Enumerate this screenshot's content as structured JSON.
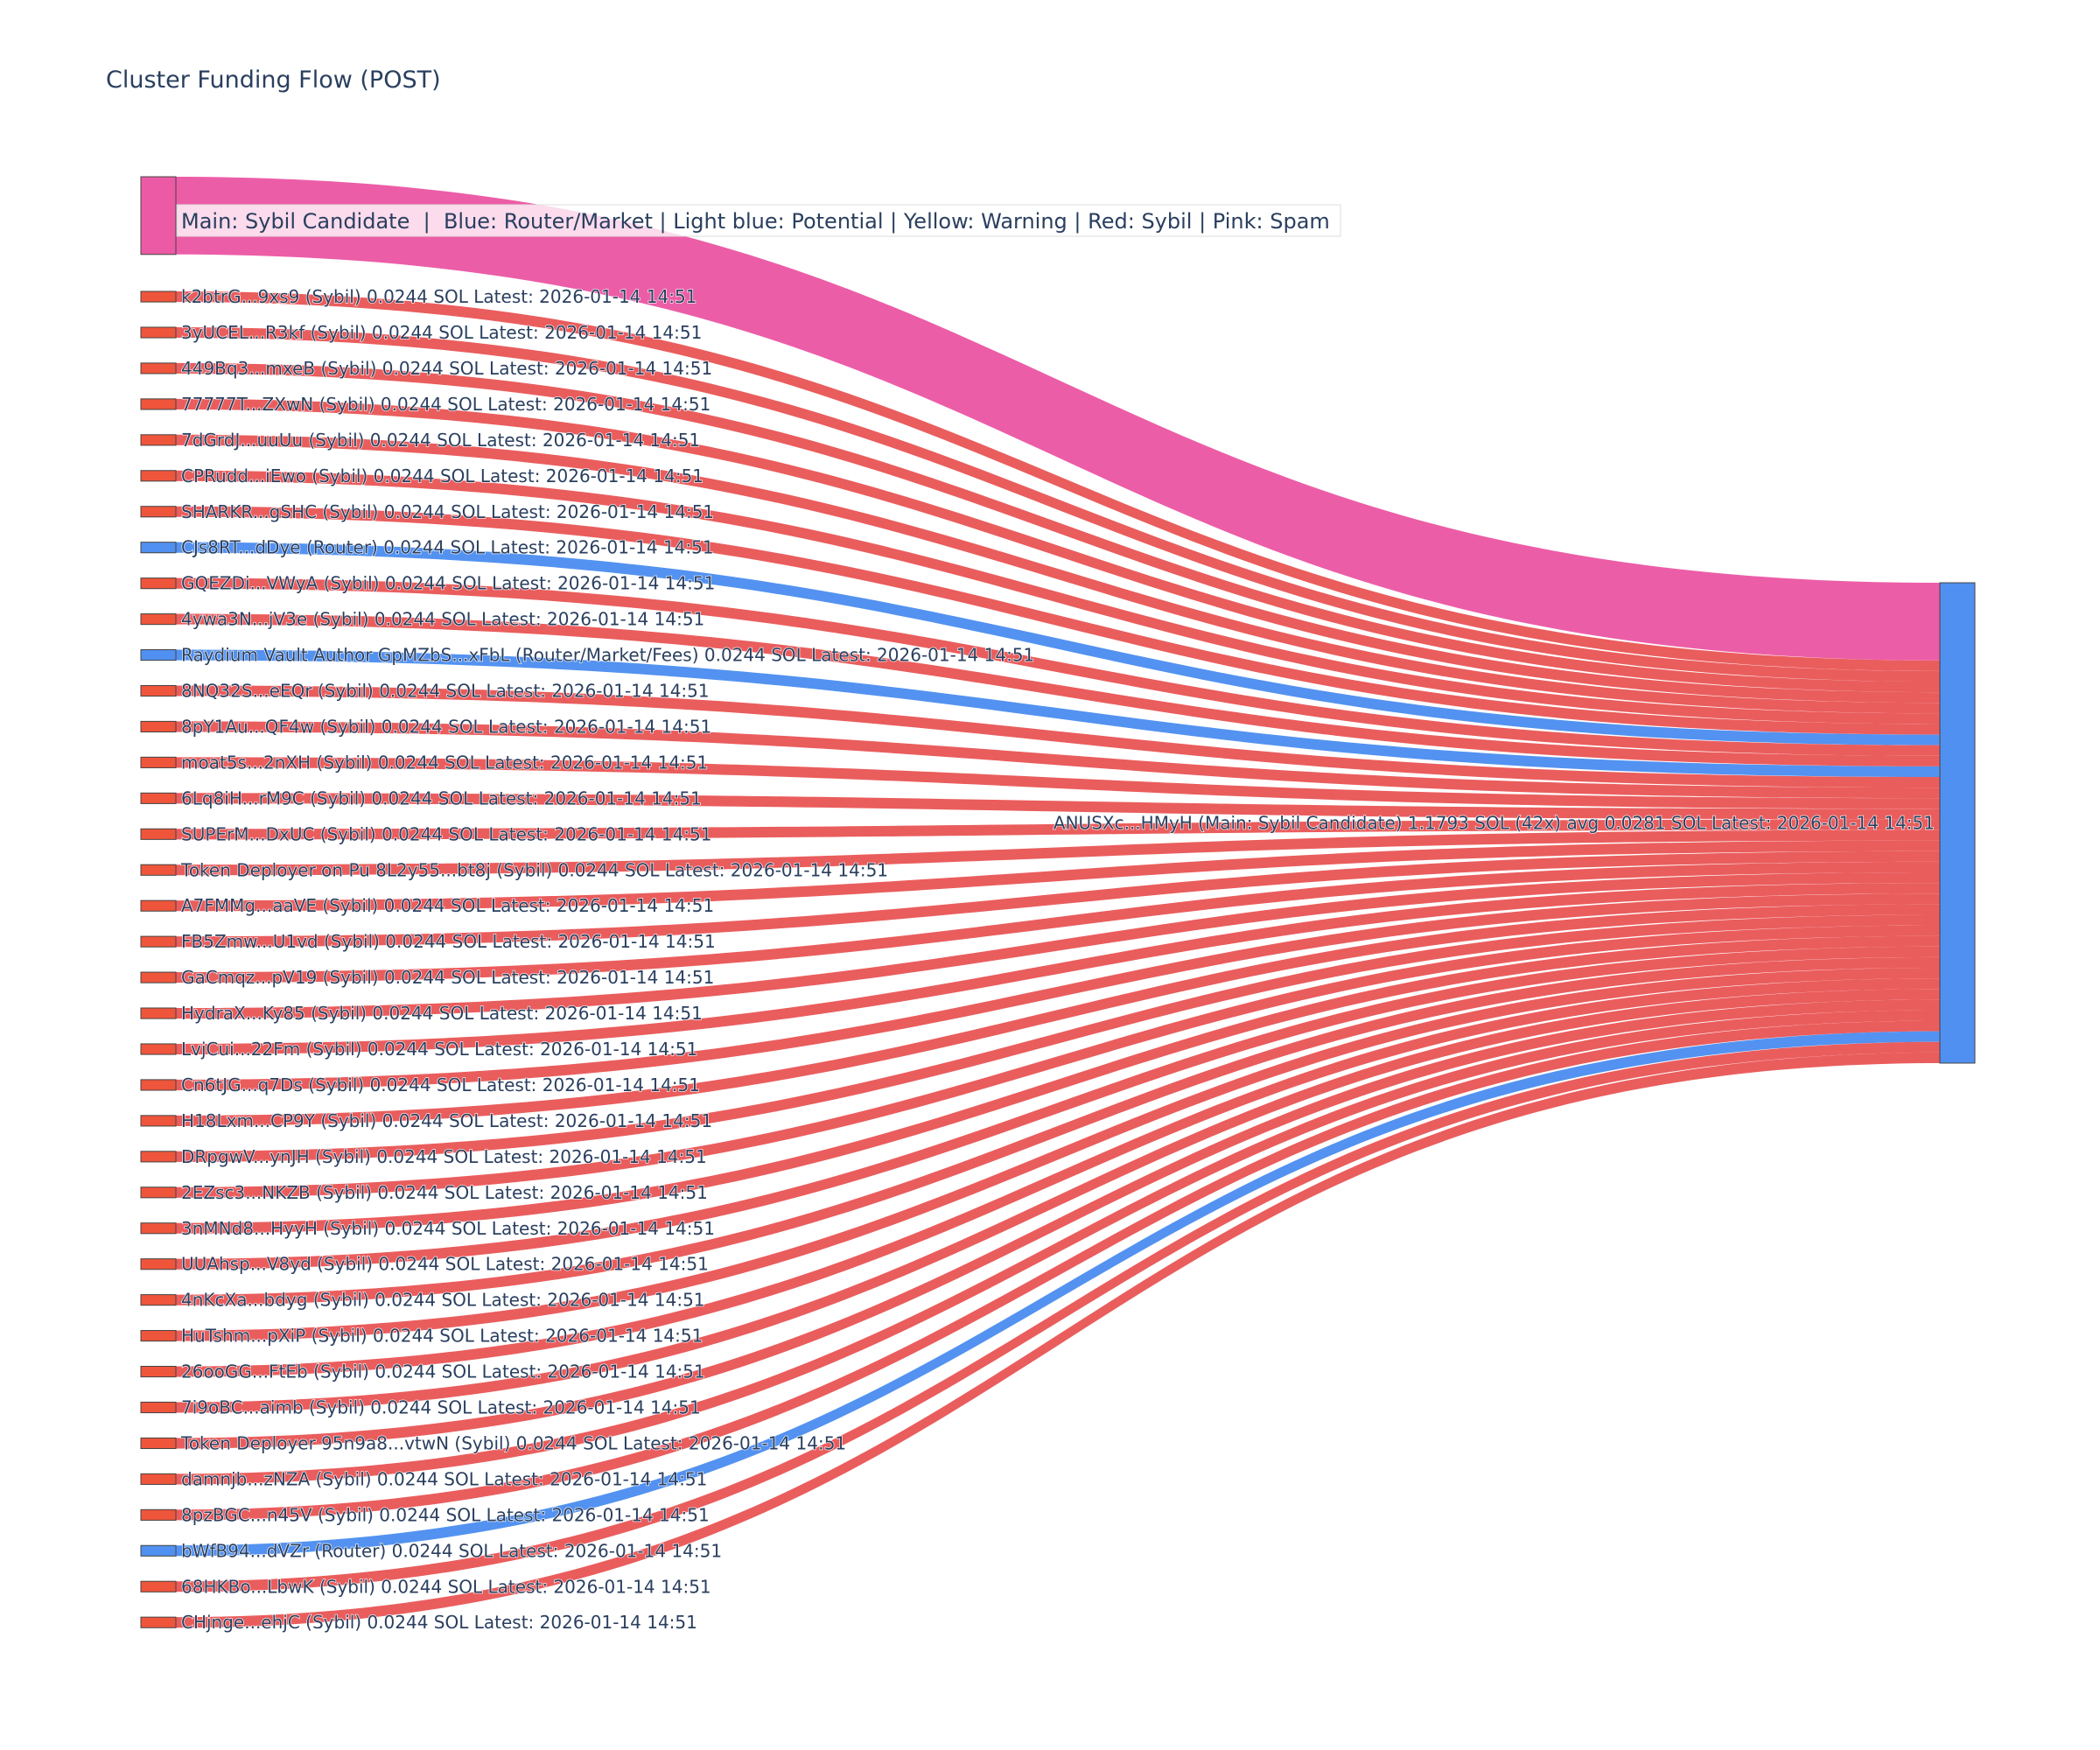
{
  "chart_data": {
    "type": "sankey",
    "title": "Cluster Funding Flow (POST)",
    "legend_text": "Main: Sybil Candidate  |  Blue: Router/Market | Light blue: Potential | Yellow: Warning | Red: Sybil | Pink: Spam",
    "colors": {
      "sybil": "#ef553b",
      "sybil_link": "#ea5a5a",
      "router": "#5090f0",
      "spam": "#ec5aa5",
      "main": "#5090f0"
    },
    "target": {
      "label": "ANUSXc...HMyH (Main: Sybil Candidate) 1.1793 SOL (42x) avg 0.0281 SOL Latest: 2026-01-14 14:51",
      "kind": "main"
    },
    "sources": [
      {
        "label": "",
        "kind": "spam",
        "value": 0.1789
      },
      {
        "label": "k2btrG...9xs9 (Sybil) 0.0244 SOL Latest: 2026-01-14 14:51",
        "kind": "sybil",
        "value": 0.0244
      },
      {
        "label": "3yUCEL...R3kf (Sybil) 0.0244 SOL Latest: 2026-01-14 14:51",
        "kind": "sybil",
        "value": 0.0244
      },
      {
        "label": "449Bq3...mxeB (Sybil) 0.0244 SOL Latest: 2026-01-14 14:51",
        "kind": "sybil",
        "value": 0.0244
      },
      {
        "label": "77777T...ZXwN (Sybil) 0.0244 SOL Latest: 2026-01-14 14:51",
        "kind": "sybil",
        "value": 0.0244
      },
      {
        "label": "7dGrdJ...uuUu (Sybil) 0.0244 SOL Latest: 2026-01-14 14:51",
        "kind": "sybil",
        "value": 0.0244
      },
      {
        "label": "CPRudd...iEwo (Sybil) 0.0244 SOL Latest: 2026-01-14 14:51",
        "kind": "sybil",
        "value": 0.0244
      },
      {
        "label": "SHARKR...gSHC (Sybil) 0.0244 SOL Latest: 2026-01-14 14:51",
        "kind": "sybil",
        "value": 0.0244
      },
      {
        "label": "CJs8RT...dDye (Router) 0.0244 SOL Latest: 2026-01-14 14:51",
        "kind": "router",
        "value": 0.0244
      },
      {
        "label": "GQEZDi...VWyA (Sybil) 0.0244 SOL Latest: 2026-01-14 14:51",
        "kind": "sybil",
        "value": 0.0244
      },
      {
        "label": "4ywa3N...jV3e (Sybil) 0.0244 SOL Latest: 2026-01-14 14:51",
        "kind": "sybil",
        "value": 0.0244
      },
      {
        "label": "Raydium Vault Author GpMZbS...xFbL (Router/Market/Fees) 0.0244 SOL Latest: 2026-01-14 14:51",
        "kind": "router",
        "value": 0.0244
      },
      {
        "label": "8NQ32S...eEQr (Sybil) 0.0244 SOL Latest: 2026-01-14 14:51",
        "kind": "sybil",
        "value": 0.0244
      },
      {
        "label": "8pY1Au...QF4w (Sybil) 0.0244 SOL Latest: 2026-01-14 14:51",
        "kind": "sybil",
        "value": 0.0244
      },
      {
        "label": "moat5s...2nXH (Sybil) 0.0244 SOL Latest: 2026-01-14 14:51",
        "kind": "sybil",
        "value": 0.0244
      },
      {
        "label": "6Lq8iH...rM9C (Sybil) 0.0244 SOL Latest: 2026-01-14 14:51",
        "kind": "sybil",
        "value": 0.0244
      },
      {
        "label": "SUPErM...DxUC (Sybil) 0.0244 SOL Latest: 2026-01-14 14:51",
        "kind": "sybil",
        "value": 0.0244
      },
      {
        "label": "Token Deployer on Pu 8L2y55...bt8j (Sybil) 0.0244 SOL Latest: 2026-01-14 14:51",
        "kind": "sybil",
        "value": 0.0244
      },
      {
        "label": "A7FMMg...aaVE (Sybil) 0.0244 SOL Latest: 2026-01-14 14:51",
        "kind": "sybil",
        "value": 0.0244
      },
      {
        "label": "FB5Zmw...U1vd (Sybil) 0.0244 SOL Latest: 2026-01-14 14:51",
        "kind": "sybil",
        "value": 0.0244
      },
      {
        "label": "GaCmqz...pV19 (Sybil) 0.0244 SOL Latest: 2026-01-14 14:51",
        "kind": "sybil",
        "value": 0.0244
      },
      {
        "label": "HydraX...Ky85 (Sybil) 0.0244 SOL Latest: 2026-01-14 14:51",
        "kind": "sybil",
        "value": 0.0244
      },
      {
        "label": "LvjCui...22Fm (Sybil) 0.0244 SOL Latest: 2026-01-14 14:51",
        "kind": "sybil",
        "value": 0.0244
      },
      {
        "label": "Cn6tJG...q7Ds (Sybil) 0.0244 SOL Latest: 2026-01-14 14:51",
        "kind": "sybil",
        "value": 0.0244
      },
      {
        "label": "H18Lxm...CP9Y (Sybil) 0.0244 SOL Latest: 2026-01-14 14:51",
        "kind": "sybil",
        "value": 0.0244
      },
      {
        "label": "DRpgwV...ynJH (Sybil) 0.0244 SOL Latest: 2026-01-14 14:51",
        "kind": "sybil",
        "value": 0.0244
      },
      {
        "label": "2EZsc3...NKZB (Sybil) 0.0244 SOL Latest: 2026-01-14 14:51",
        "kind": "sybil",
        "value": 0.0244
      },
      {
        "label": "3nMNd8...HyyH (Sybil) 0.0244 SOL Latest: 2026-01-14 14:51",
        "kind": "sybil",
        "value": 0.0244
      },
      {
        "label": "UUAhsp...V8yd (Sybil) 0.0244 SOL Latest: 2026-01-14 14:51",
        "kind": "sybil",
        "value": 0.0244
      },
      {
        "label": "4nKcXa...bdyg (Sybil) 0.0244 SOL Latest: 2026-01-14 14:51",
        "kind": "sybil",
        "value": 0.0244
      },
      {
        "label": "HuTshm...pXiP (Sybil) 0.0244 SOL Latest: 2026-01-14 14:51",
        "kind": "sybil",
        "value": 0.0244
      },
      {
        "label": "26ooGG...FtEb (Sybil) 0.0244 SOL Latest: 2026-01-14 14:51",
        "kind": "sybil",
        "value": 0.0244
      },
      {
        "label": "7i9oBC...aimb (Sybil) 0.0244 SOL Latest: 2026-01-14 14:51",
        "kind": "sybil",
        "value": 0.0244
      },
      {
        "label": "Token Deployer 95n9a8...vtwN (Sybil) 0.0244 SOL Latest: 2026-01-14 14:51",
        "kind": "sybil",
        "value": 0.0244
      },
      {
        "label": "damnjb...zNZA (Sybil) 0.0244 SOL Latest: 2026-01-14 14:51",
        "kind": "sybil",
        "value": 0.0244
      },
      {
        "label": "8pzBGC...n45V (Sybil) 0.0244 SOL Latest: 2026-01-14 14:51",
        "kind": "sybil",
        "value": 0.0244
      },
      {
        "label": "bWfB94...dVZr (Router) 0.0244 SOL Latest: 2026-01-14 14:51",
        "kind": "router",
        "value": 0.0244
      },
      {
        "label": "68HKBo...LbwK (Sybil) 0.0244 SOL Latest: 2026-01-14 14:51",
        "kind": "sybil",
        "value": 0.0244
      },
      {
        "label": "CHjnge...ehjC (Sybil) 0.0244 SOL Latest: 2026-01-14 14:51",
        "kind": "sybil",
        "value": 0.0244
      }
    ]
  }
}
